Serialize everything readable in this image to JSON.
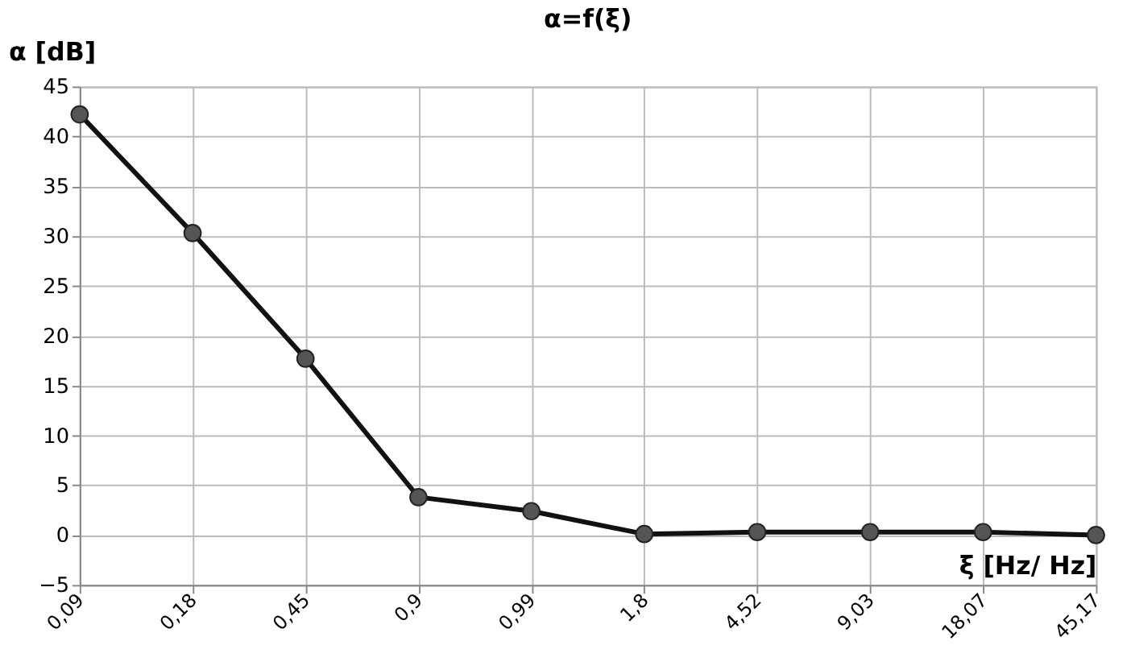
{
  "chart_data": {
    "type": "line",
    "title": "α=f(ξ)",
    "xlabel": "ξ [Hz/ Hz]",
    "ylabel": "α [dB]",
    "categories": [
      "0,09",
      "0,18",
      "0,45",
      "0,9",
      "0,99",
      "1,8",
      "4,52",
      "9,03",
      "18,07",
      "45,17"
    ],
    "series": [
      {
        "color": "#111111",
        "values": [
          42.2,
          30.3,
          17.7,
          3.8,
          2.4,
          0.1,
          0.3,
          0.3,
          0.3,
          0.0
        ]
      }
    ],
    "ylim": [
      -5,
      45
    ],
    "yticks": [
      -5,
      0,
      5,
      10,
      15,
      20,
      25,
      30,
      35,
      40,
      45
    ],
    "grid": true,
    "marker": "circle",
    "line_style": "solid"
  }
}
